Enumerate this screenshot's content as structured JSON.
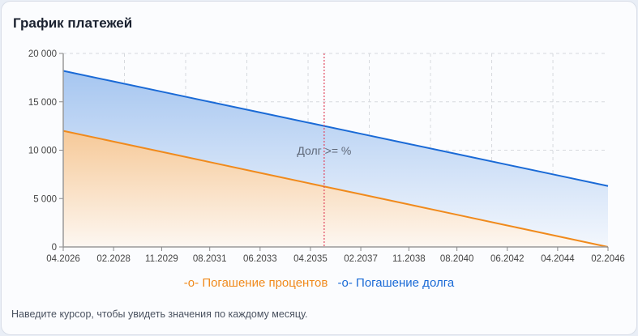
{
  "title": "График платежей",
  "footer_text": "Наведите курсор, чтобы увидеть значения по каждому месяцу.",
  "colors": {
    "interest": "#f08a1c",
    "debt": "#1a6ad6",
    "marker": "#e0465e"
  },
  "chart_data": {
    "type": "area",
    "stacked": true,
    "x": [
      "04.2026",
      "02.2028",
      "11.2029",
      "08.2031",
      "06.2033",
      "04.2035",
      "02.2037",
      "11.2038",
      "08.2040",
      "06.2042",
      "04.2044",
      "02.2046"
    ],
    "x_ticks": [
      "04.2026",
      "02.2028",
      "11.2029",
      "08.2031",
      "06.2033",
      "04.2035",
      "02.2037",
      "11.2038",
      "08.2040",
      "06.2042",
      "04.2044",
      "02.2046"
    ],
    "y_ticks": [
      "0",
      "5 000",
      "10 000",
      "15 000",
      "20 000"
    ],
    "ylim": [
      0,
      20000
    ],
    "grid": true,
    "legend_position": "bottom",
    "series": [
      {
        "name": "Погашение процентов",
        "color": "#f08a1c",
        "values": [
          12000,
          10890,
          9830,
          8770,
          7660,
          6550,
          5450,
          4390,
          3330,
          2220,
          1110,
          0
        ]
      },
      {
        "name": "Погашение долга",
        "color": "#1a6ad6",
        "values": [
          6200,
          6210,
          6220,
          6230,
          6240,
          6250,
          6250,
          6260,
          6270,
          6280,
          6290,
          6300
        ]
      }
    ],
    "annotation": {
      "label": "Долг >= %",
      "x": "10.2035"
    }
  }
}
